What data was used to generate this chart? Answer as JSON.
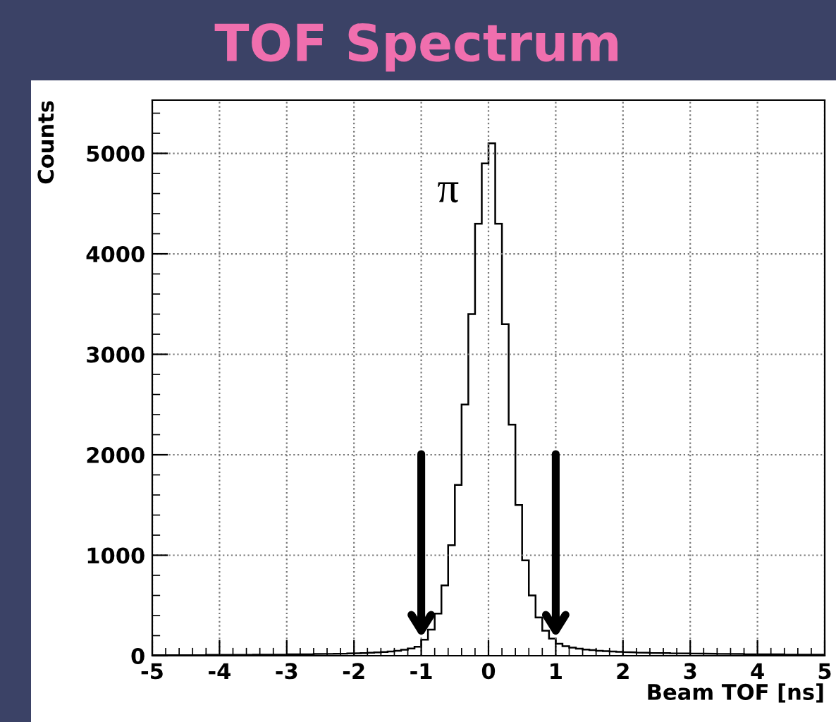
{
  "chart_data": {
    "type": "histogram",
    "title": "TOF Spectrum",
    "xlabel": "Beam TOF [ns]",
    "ylabel": "Counts",
    "bins": [
      -5.0,
      -4.9,
      -4.8,
      -4.7,
      -4.6,
      -4.5,
      -4.4,
      -4.3,
      -4.2,
      -4.1,
      -4.0,
      -3.9,
      -3.8,
      -3.7,
      -3.6,
      -3.5,
      -3.4,
      -3.3,
      -3.2,
      -3.1,
      -3.0,
      -2.9,
      -2.8,
      -2.7,
      -2.6,
      -2.5,
      -2.4,
      -2.3,
      -2.2,
      -2.1,
      -2.0,
      -1.9,
      -1.8,
      -1.7,
      -1.6,
      -1.5,
      -1.4,
      -1.3,
      -1.2,
      -1.1,
      -1.0,
      -0.9,
      -0.8,
      -0.7,
      -0.6,
      -0.5,
      -0.4,
      -0.3,
      -0.2,
      -0.1,
      0.0,
      0.1,
      0.2,
      0.3,
      0.4,
      0.5,
      0.6,
      0.7,
      0.8,
      0.9,
      1.0,
      1.1,
      1.2,
      1.3,
      1.4,
      1.5,
      1.6,
      1.7,
      1.8,
      1.9,
      2.0,
      2.1,
      2.2,
      2.3,
      2.4,
      2.5,
      2.6,
      2.7,
      2.8,
      2.9,
      3.0,
      3.1,
      3.2,
      3.3,
      3.4,
      3.5,
      3.6,
      3.7,
      3.8,
      3.9,
      4.0,
      4.1,
      4.2,
      4.3,
      4.4,
      4.5,
      4.6,
      4.7,
      4.8,
      4.9,
      5.0
    ],
    "values": [
      5,
      5,
      6,
      6,
      6,
      7,
      7,
      7,
      8,
      8,
      8,
      9,
      9,
      10,
      10,
      11,
      11,
      12,
      12,
      13,
      14,
      14,
      15,
      16,
      17,
      18,
      19,
      20,
      21,
      23,
      25,
      27,
      30,
      33,
      37,
      42,
      50,
      60,
      72,
      90,
      160,
      260,
      420,
      700,
      1100,
      1700,
      2500,
      3400,
      4300,
      4900,
      5100,
      4300,
      3300,
      2300,
      1500,
      950,
      600,
      380,
      250,
      170,
      120,
      95,
      80,
      70,
      62,
      56,
      50,
      46,
      42,
      39,
      36,
      34,
      32,
      30,
      28,
      27,
      26,
      25,
      24,
      23,
      22,
      21,
      20,
      20,
      19,
      18,
      18,
      17,
      16,
      16,
      15,
      15,
      14,
      14,
      13,
      13,
      12,
      12,
      11,
      11
    ],
    "color": "#000000",
    "xlim": [
      -5,
      5
    ],
    "xticks": [
      -5,
      -4,
      -3,
      -2,
      -1,
      0,
      1,
      2,
      3,
      4,
      5
    ],
    "ylim": [
      0,
      5530
    ],
    "yticks": [
      0,
      1000,
      2000,
      3000,
      4000,
      5000
    ],
    "grid": true,
    "annotations": [
      "π"
    ]
  }
}
